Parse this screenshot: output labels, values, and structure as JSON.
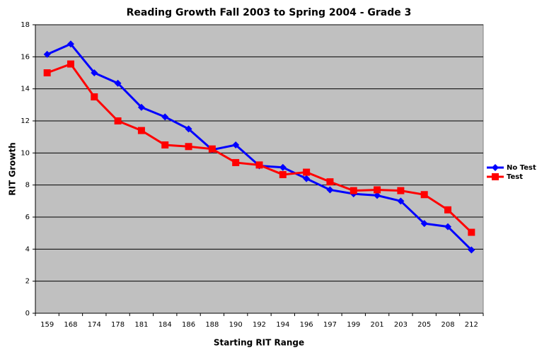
{
  "chart_data": {
    "type": "line",
    "title": "Reading Growth Fall 2003 to Spring 2004 - Grade 3",
    "x_label": "Starting RIT Range",
    "y_label": "RIT Growth",
    "categories": [
      "159",
      "168",
      "174",
      "178",
      "181",
      "184",
      "186",
      "188",
      "190",
      "192",
      "194",
      "196",
      "197",
      "199",
      "201",
      "203",
      "205",
      "208",
      "212"
    ],
    "series": [
      {
        "name": "No Test",
        "color": "#0000ff",
        "marker": "diamond",
        "values": [
          16.15,
          16.8,
          15.0,
          14.35,
          12.85,
          12.25,
          11.5,
          10.2,
          10.5,
          9.2,
          9.1,
          8.4,
          7.7,
          7.45,
          7.35,
          7.0,
          5.6,
          5.4,
          3.95
        ]
      },
      {
        "name": "Test",
        "color": "#ff0000",
        "marker": "square",
        "values": [
          15.0,
          15.55,
          13.5,
          12.0,
          11.4,
          10.5,
          10.4,
          10.25,
          9.4,
          9.25,
          8.65,
          8.8,
          8.2,
          7.65,
          7.7,
          7.65,
          7.4,
          6.45,
          5.05
        ]
      }
    ],
    "ylim": [
      0,
      18
    ],
    "yticks": [
      0,
      2,
      4,
      6,
      8,
      10,
      12,
      14,
      16,
      18
    ],
    "grid": true,
    "legend": "right"
  }
}
